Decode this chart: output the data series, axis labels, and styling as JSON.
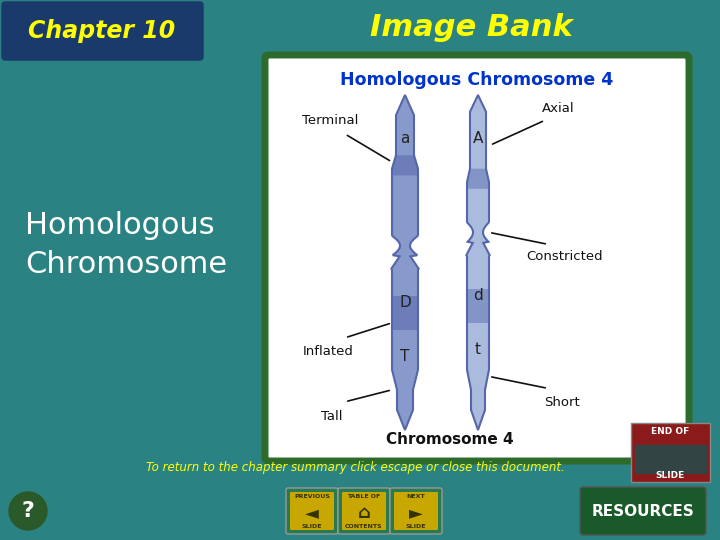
{
  "bg_color": "#2e8b8b",
  "chapter_box_color": "#1a3a6b",
  "chapter_text": "Chapter 10",
  "chapter_text_color": "#ffff00",
  "imagebank_text": "Image Bank",
  "imagebank_text_color": "#ffff00",
  "main_title": "Homologous\nChromosome",
  "main_title_color": "#ffffff",
  "footer_text": "To return to the chapter summary click escape or close this document.",
  "footer_text_color": "#ffff00",
  "diagram_box_color": "#2d6b2d",
  "diagram_bg": "#ffffff",
  "diagram_title": "Homologous Chromosome 4",
  "diagram_title_color": "#0033cc",
  "diagram_subtitle": "Chromosome 4",
  "chr_color": "#8899cc",
  "chr_dark": "#5566aa",
  "chr_light": "#aabbdd",
  "ann_color": "#111111",
  "end_of_slide_color": "#8b1a1a",
  "nav_button_color": "#c8a800",
  "nav_bg": "#2a7a50",
  "resources_color": "#1a5a2a"
}
